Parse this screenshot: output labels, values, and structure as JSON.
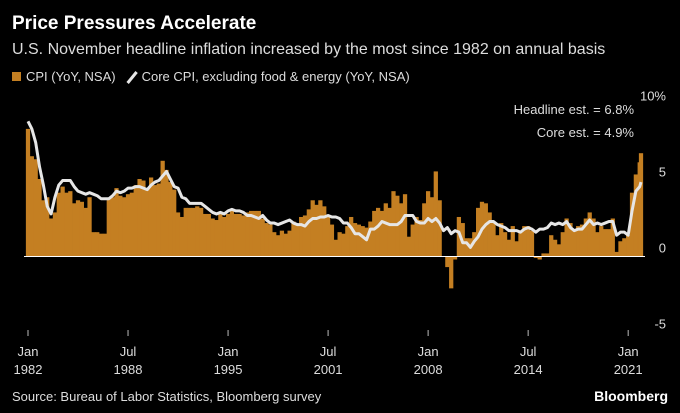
{
  "chart_data": {
    "type": "bar-line",
    "title": "Price Pressures Accelerate",
    "subtitle": "U.S. November headline inflation increased by the most since 1982 on annual basis",
    "source": "Source: Bureau of Labor Statistics, Bloomberg survey",
    "brand": "Bloomberg",
    "annotations": [
      "Headline est. = 6.8%",
      "Core est. = 4.9%"
    ],
    "x": [
      "1982-01",
      "1982-04",
      "1982-07",
      "1982-10",
      "1983-01",
      "1983-04",
      "1983-07",
      "1983-10",
      "1984-01",
      "1984-04",
      "1984-07",
      "1984-10",
      "1985-01",
      "1985-04",
      "1985-07",
      "1985-10",
      "1986-01",
      "1986-04",
      "1986-07",
      "1986-10",
      "1987-01",
      "1987-04",
      "1987-07",
      "1987-10",
      "1988-01",
      "1988-04",
      "1988-07",
      "1988-10",
      "1989-01",
      "1989-04",
      "1989-07",
      "1989-10",
      "1990-01",
      "1990-04",
      "1990-07",
      "1990-10",
      "1991-01",
      "1991-04",
      "1991-07",
      "1991-10",
      "1992-01",
      "1992-04",
      "1992-07",
      "1992-10",
      "1993-01",
      "1993-04",
      "1993-07",
      "1993-10",
      "1994-01",
      "1994-04",
      "1994-07",
      "1994-10",
      "1995-01",
      "1995-04",
      "1995-07",
      "1995-10",
      "1996-01",
      "1996-04",
      "1996-07",
      "1996-10",
      "1997-01",
      "1997-04",
      "1997-07",
      "1997-10",
      "1998-01",
      "1998-04",
      "1998-07",
      "1998-10",
      "1999-01",
      "1999-04",
      "1999-07",
      "1999-10",
      "2000-01",
      "2000-04",
      "2000-07",
      "2000-10",
      "2001-01",
      "2001-04",
      "2001-07",
      "2001-10",
      "2002-01",
      "2002-04",
      "2002-07",
      "2002-10",
      "2003-01",
      "2003-04",
      "2003-07",
      "2003-10",
      "2004-01",
      "2004-04",
      "2004-07",
      "2004-10",
      "2005-01",
      "2005-04",
      "2005-07",
      "2005-10",
      "2006-01",
      "2006-04",
      "2006-07",
      "2006-10",
      "2007-01",
      "2007-04",
      "2007-07",
      "2007-10",
      "2008-01",
      "2008-04",
      "2008-07",
      "2008-10",
      "2009-01",
      "2009-04",
      "2009-07",
      "2009-10",
      "2010-01",
      "2010-04",
      "2010-07",
      "2010-10",
      "2011-01",
      "2011-04",
      "2011-07",
      "2011-10",
      "2012-01",
      "2012-04",
      "2012-07",
      "2012-10",
      "2013-01",
      "2013-04",
      "2013-07",
      "2013-10",
      "2014-01",
      "2014-04",
      "2014-07",
      "2014-10",
      "2015-01",
      "2015-04",
      "2015-07",
      "2015-10",
      "2016-01",
      "2016-04",
      "2016-07",
      "2016-10",
      "2017-01",
      "2017-04",
      "2017-07",
      "2017-10",
      "2018-01",
      "2018-04",
      "2018-07",
      "2018-10",
      "2019-01",
      "2019-04",
      "2019-07",
      "2019-10",
      "2020-01",
      "2020-04",
      "2020-07",
      "2020-10",
      "2021-01",
      "2021-04",
      "2021-07",
      "2021-10",
      "2021-11"
    ],
    "series": [
      {
        "name": "CPI (YoY, NSA)",
        "kind": "bar",
        "color": "#c47f22",
        "values": [
          8.4,
          6.6,
          6.4,
          5.1,
          3.7,
          3.9,
          2.5,
          2.9,
          4.2,
          4.6,
          4.2,
          4.3,
          3.5,
          3.7,
          3.6,
          3.2,
          3.9,
          1.6,
          1.6,
          1.5,
          1.5,
          3.8,
          3.9,
          4.5,
          4.0,
          3.9,
          4.1,
          4.2,
          4.7,
          5.1,
          5.0,
          4.5,
          5.2,
          4.7,
          4.8,
          6.3,
          5.7,
          4.9,
          4.4,
          2.9,
          2.6,
          3.2,
          3.2,
          3.2,
          3.3,
          3.2,
          2.8,
          2.8,
          2.5,
          2.4,
          2.8,
          2.6,
          2.8,
          3.1,
          2.8,
          2.8,
          2.7,
          2.9,
          3.0,
          3.0,
          3.0,
          2.5,
          2.2,
          2.1,
          1.6,
          1.4,
          1.7,
          1.5,
          1.7,
          2.3,
          2.1,
          2.6,
          2.7,
          3.1,
          3.7,
          3.4,
          3.7,
          3.3,
          2.7,
          2.1,
          1.1,
          1.6,
          1.5,
          2.0,
          2.6,
          2.2,
          2.1,
          2.0,
          1.9,
          2.3,
          3.0,
          3.2,
          3.0,
          3.5,
          3.2,
          4.3,
          4.0,
          3.5,
          4.1,
          1.3,
          2.1,
          2.6,
          2.4,
          3.5,
          4.3,
          3.9,
          5.6,
          3.7,
          0.0,
          -0.7,
          -2.1,
          -0.2,
          2.6,
          2.2,
          1.2,
          1.2,
          1.6,
          3.2,
          3.6,
          3.5,
          2.9,
          2.3,
          1.4,
          2.2,
          1.6,
          1.1,
          2.0,
          1.0,
          1.6,
          2.0,
          2.0,
          1.7,
          -0.1,
          -0.2,
          0.2,
          0.2,
          1.4,
          1.1,
          0.8,
          1.6,
          2.5,
          2.2,
          1.7,
          2.0,
          2.1,
          2.5,
          2.9,
          2.5,
          1.6,
          2.0,
          1.8,
          1.8,
          2.5,
          0.3,
          1.0,
          1.2,
          1.4,
          4.2,
          5.4,
          6.2,
          6.8
        ]
      },
      {
        "name": "Core CPI, excluding food & energy (YoY, NSA)",
        "kind": "line",
        "color": "#e6e6e6",
        "values": [
          8.9,
          8.4,
          7.5,
          5.9,
          4.7,
          3.3,
          2.8,
          3.9,
          4.7,
          5.0,
          5.0,
          5.0,
          4.6,
          4.3,
          4.2,
          4.1,
          4.2,
          4.1,
          4.0,
          3.8,
          3.8,
          3.8,
          4.0,
          4.3,
          4.2,
          4.3,
          4.5,
          4.5,
          4.6,
          4.6,
          4.5,
          4.4,
          4.7,
          4.9,
          5.0,
          5.3,
          5.6,
          5.1,
          4.6,
          4.5,
          3.9,
          3.8,
          3.5,
          3.5,
          3.5,
          3.5,
          3.3,
          3.1,
          2.9,
          2.8,
          2.9,
          2.8,
          3.0,
          3.1,
          3.0,
          3.0,
          2.9,
          2.7,
          2.7,
          2.6,
          2.5,
          2.7,
          2.4,
          2.2,
          2.2,
          2.1,
          2.2,
          2.3,
          2.4,
          2.2,
          2.1,
          2.1,
          2.0,
          2.3,
          2.5,
          2.5,
          2.6,
          2.6,
          2.7,
          2.6,
          2.6,
          2.5,
          2.2,
          2.2,
          1.9,
          1.5,
          1.5,
          1.3,
          1.1,
          1.8,
          1.8,
          2.0,
          2.3,
          2.2,
          2.1,
          2.1,
          2.1,
          2.3,
          2.7,
          2.7,
          2.7,
          2.3,
          2.2,
          2.2,
          2.5,
          2.3,
          2.5,
          2.2,
          1.7,
          1.9,
          1.5,
          1.7,
          1.6,
          0.9,
          0.9,
          0.6,
          1.0,
          1.3,
          1.8,
          2.1,
          2.3,
          2.3,
          2.1,
          2.0,
          1.9,
          1.7,
          1.7,
          1.7,
          1.6,
          1.8,
          1.9,
          1.8,
          1.6,
          1.8,
          1.8,
          1.9,
          2.2,
          2.1,
          2.2,
          2.1,
          2.3,
          1.9,
          1.7,
          1.8,
          1.8,
          2.1,
          2.4,
          2.1,
          2.2,
          2.1,
          2.2,
          2.3,
          2.3,
          1.4,
          1.6,
          1.6,
          1.4,
          3.0,
          4.3,
          4.6,
          4.9
        ]
      }
    ],
    "xlim": [
      "1982-01",
      "2021-11"
    ],
    "xticks": [
      {
        "value": "1982-01",
        "label": "Jan 1982"
      },
      {
        "value": "1988-07",
        "label": "Jul 1988"
      },
      {
        "value": "1995-01",
        "label": "Jan 1995"
      },
      {
        "value": "2001-07",
        "label": "Jul 2001"
      },
      {
        "value": "2008-01",
        "label": "Jan 2008"
      },
      {
        "value": "2014-07",
        "label": "Jul 2014"
      },
      {
        "value": "2021-01",
        "label": "Jan 2021"
      }
    ],
    "ylim": [
      -5.5,
      10.5
    ],
    "yticks": [
      -5,
      0,
      5,
      {
        "value": 10,
        "label": "10%"
      }
    ],
    "grid": false
  }
}
